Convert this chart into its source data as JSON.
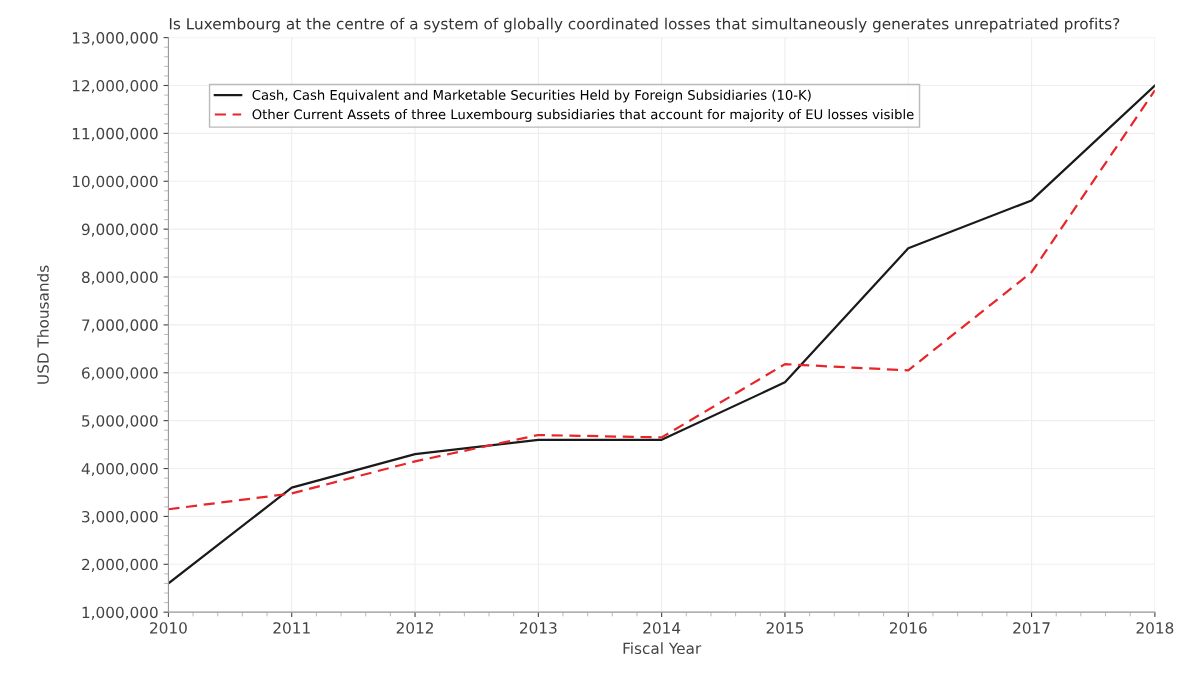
{
  "chart_data": {
    "type": "line",
    "title": "Is Luxembourg at the centre of a system of globally coordinated losses that simultaneously generates unrepatriated profits?",
    "xlabel": "Fiscal Year",
    "ylabel": "USD Thousands",
    "x": [
      2010,
      2011,
      2012,
      2013,
      2014,
      2015,
      2016,
      2017,
      2018
    ],
    "series": [
      {
        "name": "Cash, Cash Equivalent and Marketable Securities Held by Foreign Subsidiaries (10-K)",
        "color": "#1a1a1a",
        "line_style": "solid",
        "values": [
          1600000,
          3600000,
          4300000,
          4600000,
          4600000,
          5800000,
          8600000,
          9600000,
          12000000
        ]
      },
      {
        "name": "Other Current Assets of three Luxembourg subsidiaries that account for majority of EU losses visible",
        "color": "#e8262a",
        "line_style": "dashed",
        "values": [
          3150000,
          3480000,
          4150000,
          4700000,
          4650000,
          6180000,
          6050000,
          8100000,
          11900000
        ]
      }
    ],
    "xlim": [
      2010,
      2018
    ],
    "xticks": [
      2010,
      2011,
      2012,
      2013,
      2014,
      2015,
      2016,
      2017,
      2018
    ],
    "ylim": [
      1000000,
      13000000
    ],
    "yticks": [
      {
        "value": 1000000,
        "label": "1,000,000"
      },
      {
        "value": 2000000,
        "label": "2,000,000"
      },
      {
        "value": 3000000,
        "label": "3,000,000"
      },
      {
        "value": 4000000,
        "label": "4,000,000"
      },
      {
        "value": 5000000,
        "label": "5,000,000"
      },
      {
        "value": 6000000,
        "label": "6,000,000"
      },
      {
        "value": 7000000,
        "label": "7,000,000"
      },
      {
        "value": 8000000,
        "label": "8,000,000"
      },
      {
        "value": 9000000,
        "label": "9,000,000"
      },
      {
        "value": 10000000,
        "label": "10,000,000"
      },
      {
        "value": 11000000,
        "label": "11,000,000"
      },
      {
        "value": 12000000,
        "label": "12,000,000"
      },
      {
        "value": 13000000,
        "label": "13,000,000"
      }
    ],
    "grid": true,
    "legend": "top left",
    "marker": "none"
  }
}
